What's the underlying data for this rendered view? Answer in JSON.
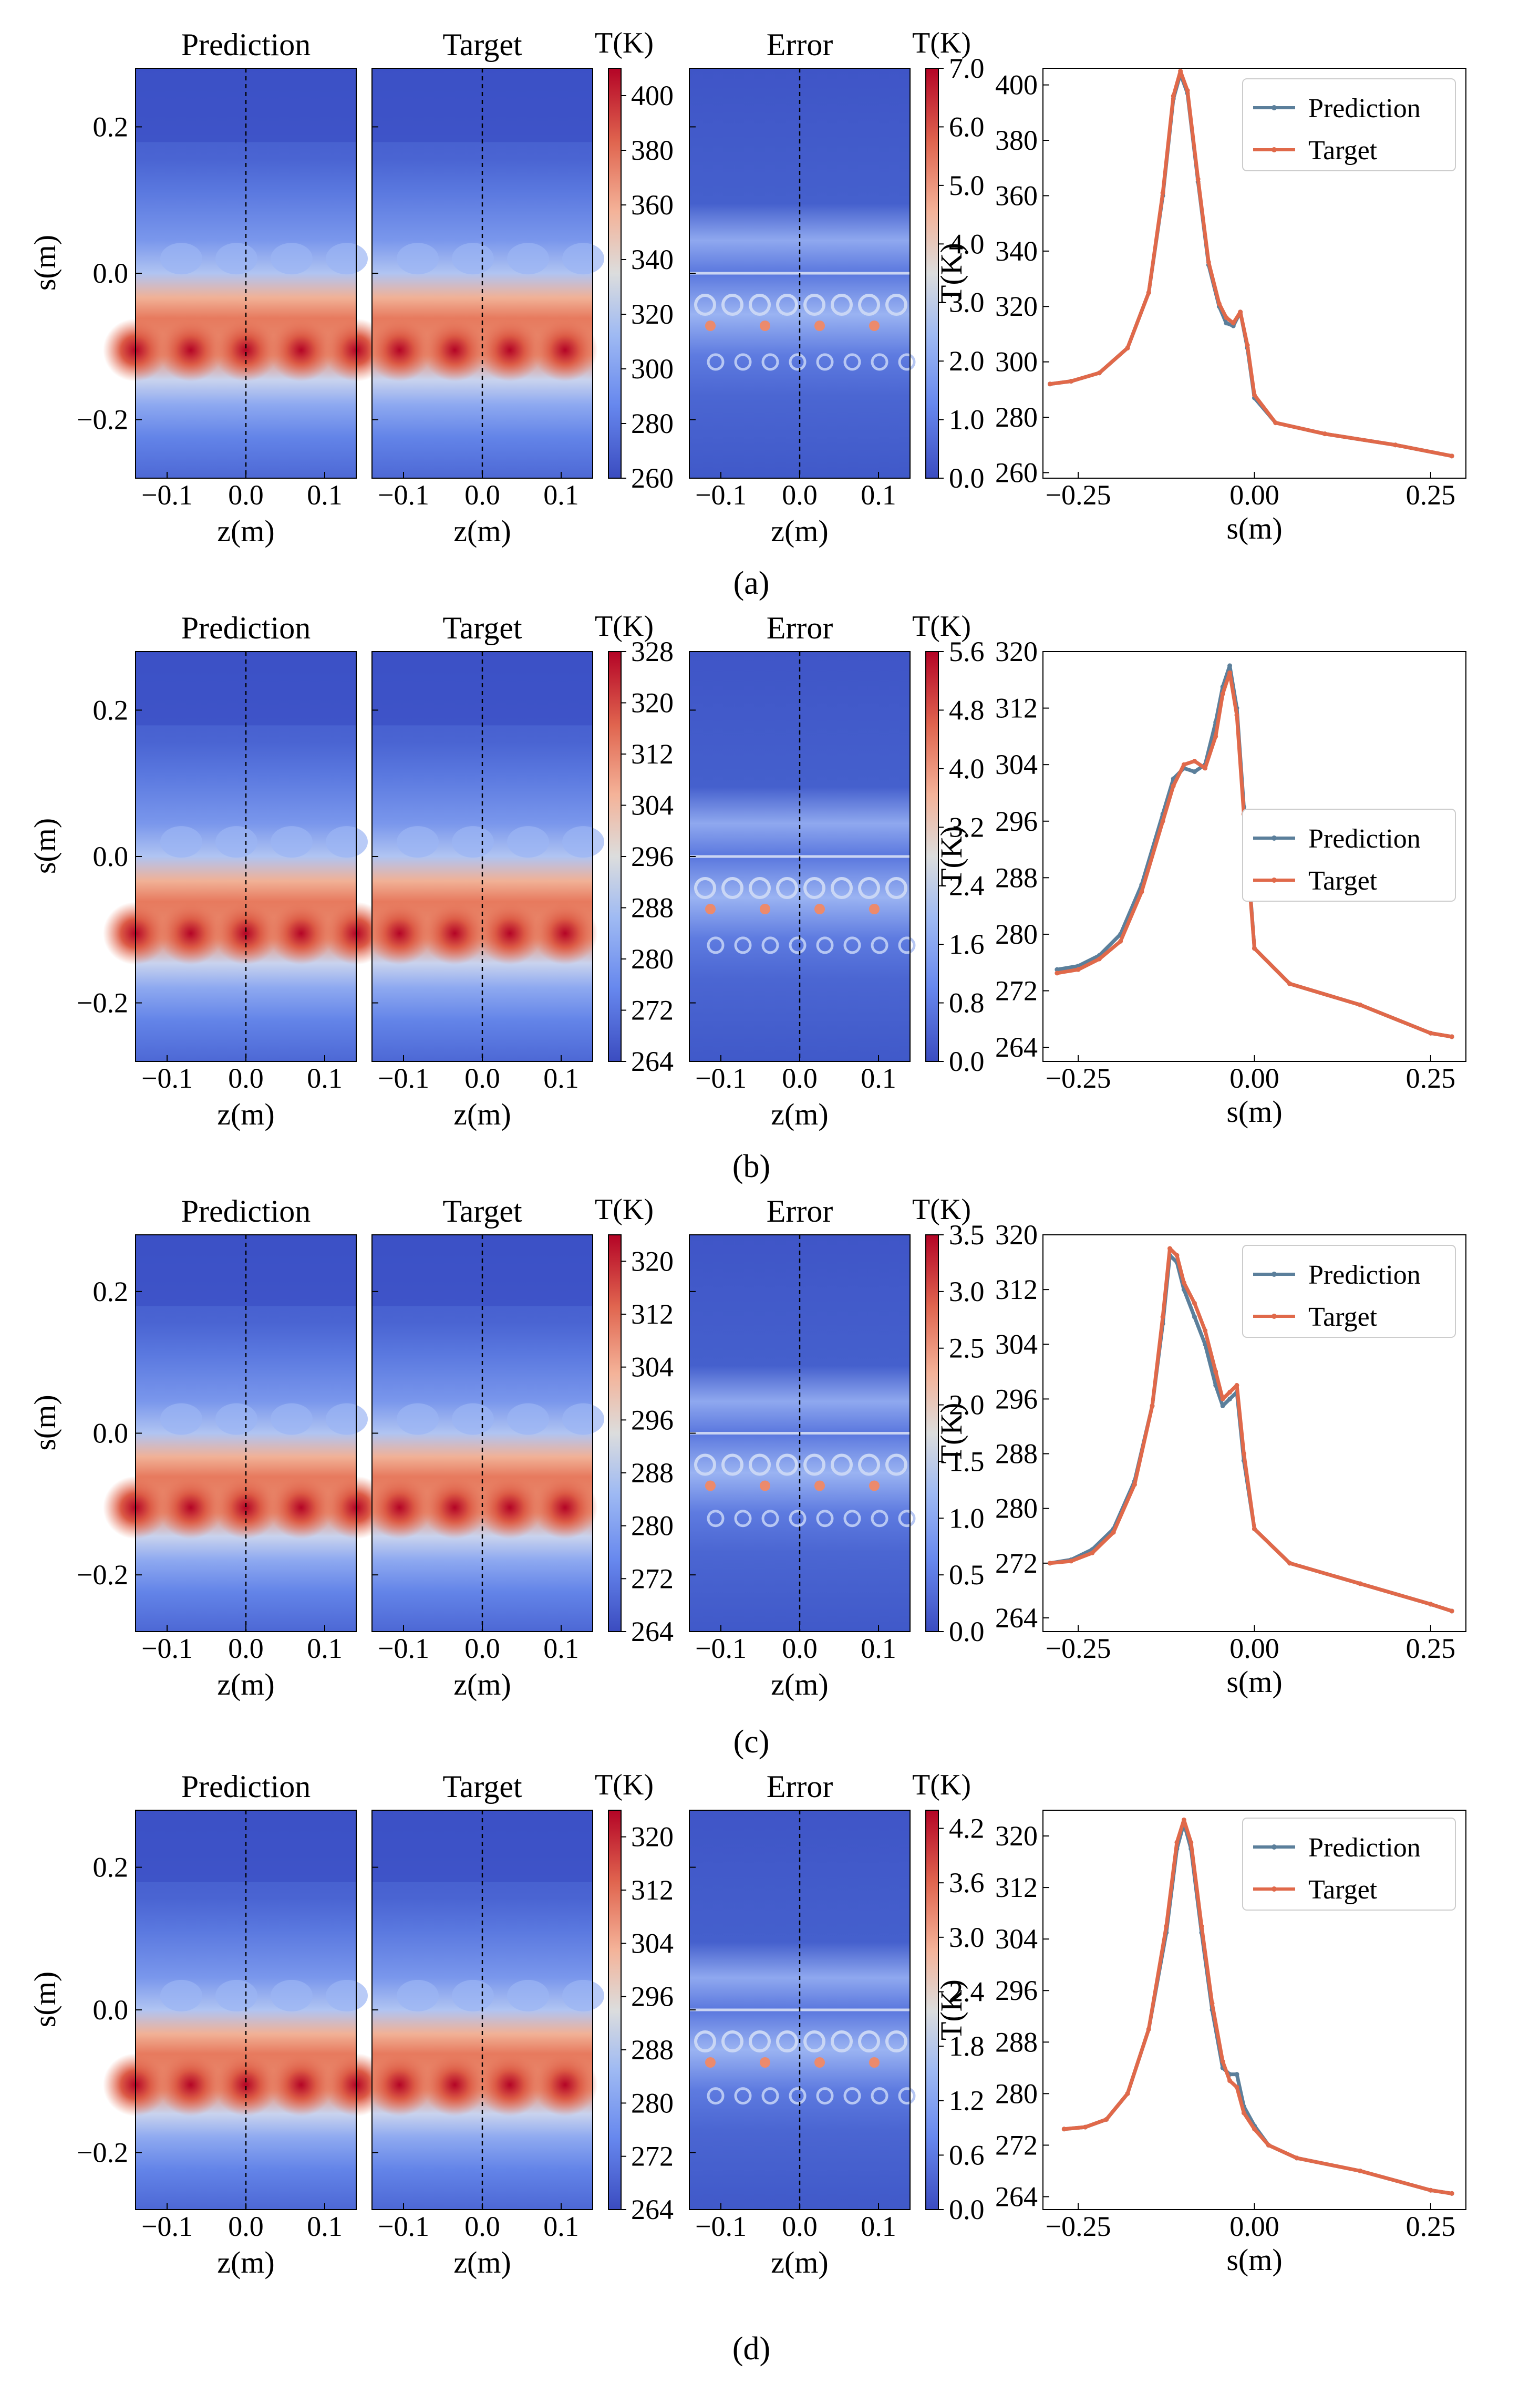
{
  "figure": {
    "heatmap_titles": [
      "Prediction",
      "Target",
      "Error"
    ],
    "colorbar_label": "T(K)",
    "zlabel": "z(m)",
    "slabel": "s(m)",
    "tlabel": "T(K)",
    "legend": [
      "Prediction",
      "Target"
    ],
    "field_x_ticks": [
      "−0.1",
      "0.0",
      "0.1"
    ],
    "field_y_ticks": [
      "0.2",
      "0.0",
      "−0.2"
    ],
    "line_x_ticks": [
      "−0.25",
      "0.00",
      "0.25"
    ]
  },
  "colors": {
    "prediction": "#5b7f9b",
    "target": "#e0694a",
    "cold": "#3b4cc0",
    "hot": "#b40426"
  },
  "chart_data": [
    {
      "label": "(a)",
      "type": "heatmap",
      "field_cbar_ticks": [
        "400",
        "380",
        "360",
        "340",
        "320",
        "300",
        "280",
        "260"
      ],
      "field_range": [
        260,
        410
      ],
      "error_cbar_ticks": [
        "7.0",
        "6.0",
        "5.0",
        "4.0",
        "3.0",
        "2.0",
        "1.0",
        "0.0"
      ],
      "error_range": [
        0,
        7
      ],
      "line": {
        "type": "line",
        "xlabel": "s(m)",
        "ylabel": "T(K)",
        "xlim": [
          -0.3,
          0.3
        ],
        "ylim": [
          258,
          406
        ],
        "yticks": [
          "400",
          "380",
          "360",
          "340",
          "320",
          "300",
          "280",
          "260"
        ],
        "legend_position": "top-right",
        "prediction": {
          "s": [
            -0.29,
            -0.26,
            -0.22,
            -0.18,
            -0.15,
            -0.13,
            -0.115,
            -0.105,
            -0.095,
            -0.08,
            -0.065,
            -0.05,
            -0.04,
            -0.03,
            -0.02,
            -0.01,
            0.0,
            0.03,
            0.1,
            0.2,
            0.28
          ],
          "T": [
            292,
            293,
            296,
            305,
            325,
            360,
            395,
            404,
            397,
            365,
            335,
            320,
            314,
            313,
            318,
            305,
            287,
            278,
            274,
            270,
            266
          ]
        },
        "target": {
          "s": [
            -0.29,
            -0.26,
            -0.22,
            -0.18,
            -0.15,
            -0.13,
            -0.115,
            -0.105,
            -0.095,
            -0.08,
            -0.065,
            -0.05,
            -0.04,
            -0.03,
            -0.02,
            -0.01,
            0.0,
            0.03,
            0.1,
            0.2,
            0.28
          ],
          "T": [
            292,
            293,
            296,
            305,
            325,
            361,
            396,
            405,
            398,
            366,
            336,
            321,
            316,
            314,
            318,
            306,
            288,
            278,
            274,
            270,
            266
          ]
        }
      }
    },
    {
      "label": "(b)",
      "type": "heatmap",
      "field_cbar_ticks": [
        "328",
        "320",
        "312",
        "304",
        "296",
        "288",
        "280",
        "272",
        "264"
      ],
      "field_range": [
        264,
        328
      ],
      "error_cbar_ticks": [
        "5.6",
        "4.8",
        "4.0",
        "3.2",
        "2.4",
        "1.6",
        "0.8",
        "0.0"
      ],
      "error_range": [
        0,
        5.6
      ],
      "line": {
        "type": "line",
        "xlabel": "s(m)",
        "ylabel": "T(K)",
        "xlim": [
          -0.3,
          0.3
        ],
        "ylim": [
          262,
          320
        ],
        "yticks": [
          "320",
          "312",
          "304",
          "296",
          "288",
          "280",
          "272",
          "264"
        ],
        "legend_position": "center-right",
        "prediction": {
          "s": [
            -0.28,
            -0.25,
            -0.22,
            -0.19,
            -0.16,
            -0.13,
            -0.115,
            -0.1,
            -0.085,
            -0.07,
            -0.055,
            -0.045,
            -0.035,
            -0.025,
            -0.015,
            0.0,
            0.05,
            0.15,
            0.25,
            0.28
          ],
          "T": [
            275,
            275.5,
            277,
            280,
            287,
            297,
            302,
            303.5,
            303,
            304,
            310,
            315,
            318,
            312,
            298,
            278,
            273,
            270,
            266,
            265.5
          ]
        },
        "target": {
          "s": [
            -0.28,
            -0.25,
            -0.22,
            -0.19,
            -0.16,
            -0.13,
            -0.115,
            -0.1,
            -0.085,
            -0.07,
            -0.055,
            -0.045,
            -0.035,
            -0.025,
            -0.015,
            0.0,
            0.05,
            0.15,
            0.25,
            0.28
          ],
          "T": [
            274.5,
            275,
            276.5,
            279,
            286,
            296,
            301,
            304,
            304.5,
            303.5,
            308,
            314,
            317,
            311,
            297,
            278,
            273,
            270,
            266,
            265.5
          ]
        }
      }
    },
    {
      "label": "(c)",
      "type": "heatmap",
      "field_cbar_ticks": [
        "320",
        "312",
        "304",
        "296",
        "288",
        "280",
        "272",
        "264"
      ],
      "field_range": [
        264,
        324
      ],
      "error_cbar_ticks": [
        "3.5",
        "3.0",
        "2.5",
        "2.0",
        "1.5",
        "1.0",
        "0.5",
        "0.0"
      ],
      "error_range": [
        0,
        3.5
      ],
      "line": {
        "type": "line",
        "xlabel": "s(m)",
        "ylabel": "T(K)",
        "xlim": [
          -0.3,
          0.3
        ],
        "ylim": [
          262,
          320
        ],
        "yticks": [
          "320",
          "312",
          "304",
          "296",
          "288",
          "280",
          "272",
          "264"
        ],
        "legend_position": "top-right",
        "prediction": {
          "s": [
            -0.29,
            -0.26,
            -0.23,
            -0.2,
            -0.17,
            -0.145,
            -0.13,
            -0.12,
            -0.11,
            -0.1,
            -0.085,
            -0.07,
            -0.055,
            -0.045,
            -0.035,
            -0.025,
            -0.015,
            0.0,
            0.05,
            0.15,
            0.25,
            0.28
          ],
          "T": [
            272,
            272.5,
            274,
            277,
            284,
            295,
            307,
            317,
            316,
            312,
            308,
            304,
            298,
            295,
            296,
            297,
            287,
            277,
            272,
            269,
            266,
            265
          ]
        },
        "target": {
          "s": [
            -0.29,
            -0.26,
            -0.23,
            -0.2,
            -0.17,
            -0.145,
            -0.13,
            -0.12,
            -0.11,
            -0.1,
            -0.085,
            -0.07,
            -0.055,
            -0.045,
            -0.035,
            -0.025,
            -0.015,
            0.0,
            0.05,
            0.15,
            0.25,
            0.28
          ],
          "T": [
            272,
            272.3,
            273.5,
            276.5,
            283.5,
            295,
            308,
            318,
            317,
            313,
            310,
            306,
            300,
            296,
            297,
            298,
            288,
            277,
            272,
            269,
            266,
            265
          ]
        }
      }
    },
    {
      "label": "(d)",
      "type": "heatmap",
      "field_cbar_ticks": [
        "320",
        "312",
        "304",
        "296",
        "288",
        "280",
        "272",
        "264"
      ],
      "field_range": [
        264,
        324
      ],
      "error_cbar_ticks": [
        "4.2",
        "3.6",
        "3.0",
        "2.4",
        "1.8",
        "1.2",
        "0.6",
        "0.0"
      ],
      "error_range": [
        0,
        4.4
      ],
      "line": {
        "type": "line",
        "xlabel": "s(m)",
        "ylabel": "T(K)",
        "xlim": [
          -0.3,
          0.3
        ],
        "ylim": [
          262,
          324
        ],
        "yticks": [
          "320",
          "312",
          "304",
          "296",
          "288",
          "280",
          "272",
          "264"
        ],
        "legend_position": "top-right",
        "prediction": {
          "s": [
            -0.27,
            -0.24,
            -0.21,
            -0.18,
            -0.15,
            -0.125,
            -0.11,
            -0.1,
            -0.09,
            -0.075,
            -0.06,
            -0.045,
            -0.035,
            -0.025,
            -0.015,
            0.0,
            0.02,
            0.06,
            0.15,
            0.25,
            0.28
          ],
          "T": [
            274.5,
            274.8,
            276,
            280,
            290,
            305,
            318,
            322,
            318,
            305,
            293,
            284,
            283,
            283,
            278,
            275,
            272,
            270,
            268,
            265,
            264.5
          ]
        },
        "target": {
          "s": [
            -0.27,
            -0.24,
            -0.21,
            -0.18,
            -0.15,
            -0.125,
            -0.11,
            -0.1,
            -0.09,
            -0.075,
            -0.06,
            -0.045,
            -0.035,
            -0.025,
            -0.015,
            0.0,
            0.02,
            0.06,
            0.15,
            0.25,
            0.28
          ],
          "T": [
            274.5,
            274.8,
            276,
            280,
            290,
            306,
            319,
            322.5,
            319,
            306,
            294,
            285,
            282,
            281,
            277,
            274.5,
            272,
            270,
            268,
            265,
            264.5
          ]
        }
      }
    }
  ]
}
